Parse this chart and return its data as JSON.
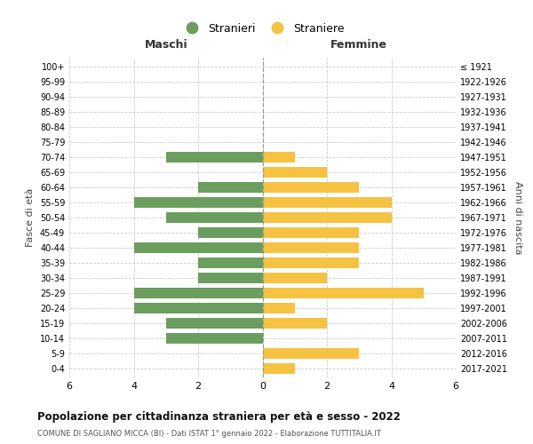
{
  "age_groups": [
    "0-4",
    "5-9",
    "10-14",
    "15-19",
    "20-24",
    "25-29",
    "30-34",
    "35-39",
    "40-44",
    "45-49",
    "50-54",
    "55-59",
    "60-64",
    "65-69",
    "70-74",
    "75-79",
    "80-84",
    "85-89",
    "90-94",
    "95-99",
    "100+"
  ],
  "birth_years": [
    "2017-2021",
    "2012-2016",
    "2007-2011",
    "2002-2006",
    "1997-2001",
    "1992-1996",
    "1987-1991",
    "1982-1986",
    "1977-1981",
    "1972-1976",
    "1967-1971",
    "1962-1966",
    "1957-1961",
    "1952-1956",
    "1947-1951",
    "1942-1946",
    "1937-1941",
    "1932-1936",
    "1927-1931",
    "1922-1926",
    "≤ 1921"
  ],
  "maschi": [
    0,
    0,
    3,
    3,
    4,
    4,
    2,
    2,
    4,
    2,
    3,
    4,
    2,
    0,
    3,
    0,
    0,
    0,
    0,
    0,
    0
  ],
  "femmine": [
    1,
    3,
    0,
    2,
    1,
    5,
    2,
    3,
    3,
    3,
    4,
    4,
    3,
    2,
    1,
    0,
    0,
    0,
    0,
    0,
    0
  ],
  "color_maschi": "#6b9e5e",
  "color_femmine": "#f5c242",
  "title": "Popolazione per cittadinanza straniera per età e sesso - 2022",
  "subtitle": "COMUNE DI SAGLIANO MICCA (BI) - Dati ISTAT 1° gennaio 2022 - Elaborazione TUTTITALIA.IT",
  "xlabel_left": "Maschi",
  "xlabel_right": "Femmine",
  "ylabel_left": "Fasce di età",
  "ylabel_right": "Anni di nascita",
  "legend_maschi": "Stranieri",
  "legend_femmine": "Straniere",
  "xlim": 6,
  "background_color": "#ffffff",
  "grid_color": "#cccccc"
}
